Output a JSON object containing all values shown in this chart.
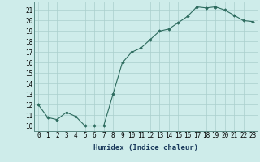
{
  "x": [
    0,
    1,
    2,
    3,
    4,
    5,
    6,
    7,
    8,
    9,
    10,
    11,
    12,
    13,
    14,
    15,
    16,
    17,
    18,
    19,
    20,
    21,
    22,
    23
  ],
  "y": [
    12,
    10.8,
    10.6,
    11.3,
    10.9,
    10.0,
    10.0,
    10.0,
    13.0,
    16.0,
    17.0,
    17.4,
    18.2,
    19.0,
    19.2,
    19.8,
    20.4,
    21.3,
    21.2,
    21.3,
    21.0,
    20.5,
    20.0,
    19.9
  ],
  "xlim": [
    -0.5,
    23.5
  ],
  "ylim": [
    9.5,
    21.8
  ],
  "yticks": [
    10,
    11,
    12,
    13,
    14,
    15,
    16,
    17,
    18,
    19,
    20,
    21
  ],
  "xticks": [
    0,
    1,
    2,
    3,
    4,
    5,
    6,
    7,
    8,
    9,
    10,
    11,
    12,
    13,
    14,
    15,
    16,
    17,
    18,
    19,
    20,
    21,
    22,
    23
  ],
  "xlabel": "Humidex (Indice chaleur)",
  "line_color": "#2d6b5e",
  "marker": "D",
  "marker_size": 1.8,
  "bg_color": "#ceecea",
  "grid_color": "#aacfcc",
  "tick_fontsize": 5.5,
  "xlabel_fontsize": 6.5
}
